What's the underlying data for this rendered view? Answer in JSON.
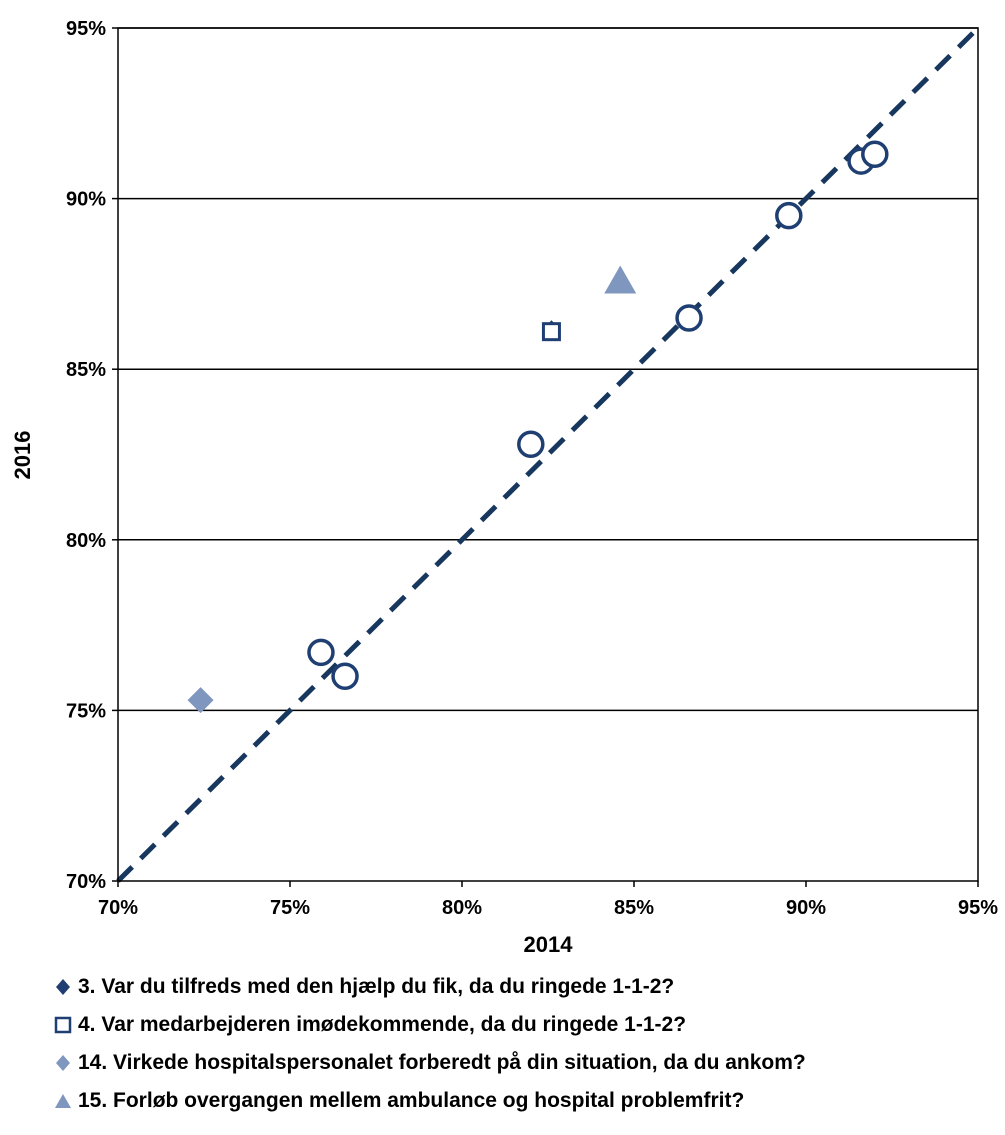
{
  "chart_data": {
    "type": "scatter",
    "title": "",
    "xlabel": "2014",
    "ylabel": "2016",
    "xlim": [
      0.7,
      0.95
    ],
    "ylim": [
      0.7,
      0.95
    ],
    "xticks": [
      "70%",
      "75%",
      "80%",
      "85%",
      "90%",
      "95%"
    ],
    "yticks": [
      "70%",
      "75%",
      "80%",
      "85%",
      "90%",
      "95%"
    ],
    "grid": "horizontal",
    "reference_line": {
      "style": "dashed",
      "from": [
        0.7,
        0.7
      ],
      "to": [
        0.95,
        0.95
      ],
      "color": "#17375E"
    },
    "series": [
      {
        "name": "",
        "marker": "circle",
        "color": "#1F3F73",
        "points": [
          {
            "x": 0.759,
            "y": 0.767
          },
          {
            "x": 0.766,
            "y": 0.76
          },
          {
            "x": 0.82,
            "y": 0.828
          },
          {
            "x": 0.866,
            "y": 0.865
          },
          {
            "x": 0.895,
            "y": 0.895
          },
          {
            "x": 0.916,
            "y": 0.911
          },
          {
            "x": 0.92,
            "y": 0.913
          }
        ]
      },
      {
        "name": "3. Var du tilfreds med den hjælp du fik, da du ringede 1-1-2?",
        "marker": "diamond",
        "color": "#1F3F73",
        "points": [
          {
            "x": 0.826,
            "y": 0.862
          }
        ]
      },
      {
        "name": "4. Var medarbejderen imødekommende, da du ringede 1-1-2?",
        "marker": "square-open",
        "color": "#1F3F73",
        "points": [
          {
            "x": 0.826,
            "y": 0.861
          }
        ]
      },
      {
        "name": "14. Virkede hospitalspersonalet forberedt på din situation, da du ankom?",
        "marker": "diamond",
        "color": "#7F97BF",
        "points": [
          {
            "x": 0.724,
            "y": 0.753
          }
        ]
      },
      {
        "name": "15. Forløb overgangen mellem ambulance og hospital problemfrit?",
        "marker": "triangle",
        "color": "#7F97BF",
        "points": [
          {
            "x": 0.846,
            "y": 0.876
          }
        ]
      }
    ]
  },
  "legend": {
    "items": [
      {
        "label": "3. Var du tilfreds med den hjælp du fik, da du ringede 1-1-2?",
        "icon": "diamond-icon",
        "color": "#1F3F73"
      },
      {
        "label": "4. Var medarbejderen imødekommende, da du ringede 1-1-2?",
        "icon": "square-open-icon",
        "color": "#1F3F73"
      },
      {
        "label": "14. Virkede hospitalspersonalet forberedt på din situation, da du ankom?",
        "icon": "diamond-icon",
        "color": "#7F97BF"
      },
      {
        "label": "15. Forløb overgangen mellem ambulance og hospital problemfrit?",
        "icon": "triangle-icon",
        "color": "#7F97BF"
      }
    ]
  }
}
